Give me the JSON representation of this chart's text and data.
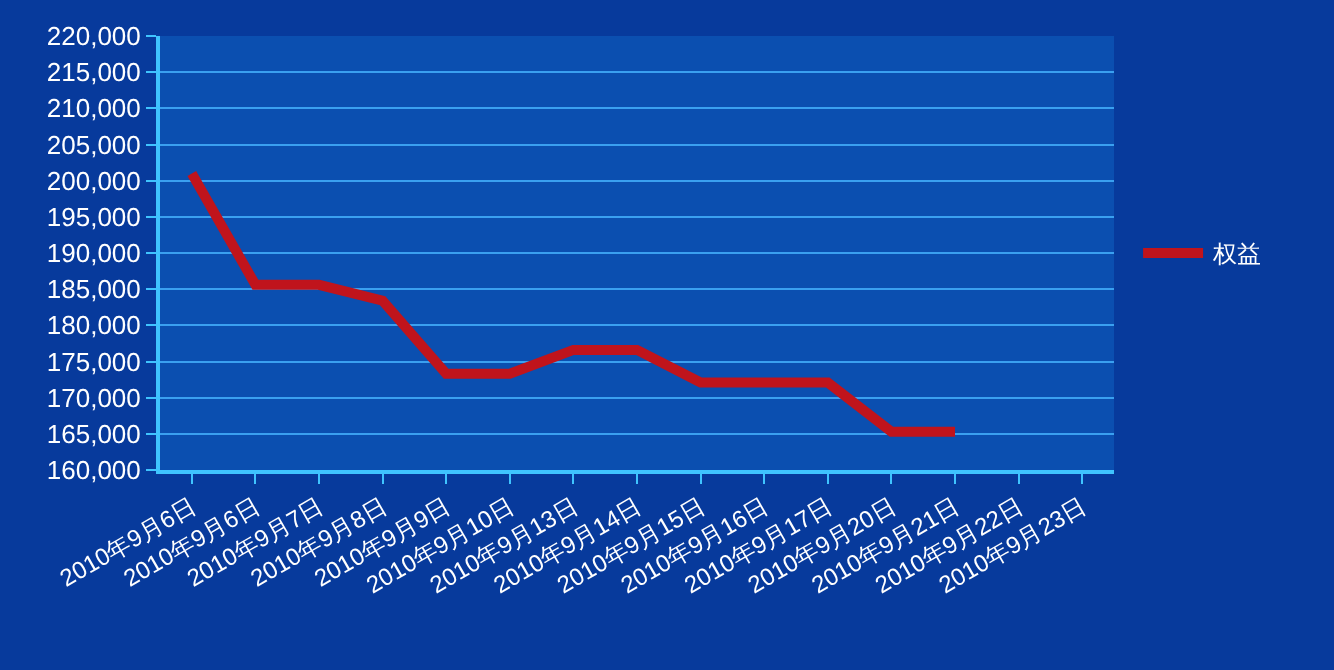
{
  "chart_data": {
    "type": "line",
    "categories": [
      "2010年9月6日",
      "2010年9月6日",
      "2010年9月7日",
      "2010年9月8日",
      "2010年9月9日",
      "2010年9月10日",
      "2010年9月13日",
      "2010年9月14日",
      "2010年9月15日",
      "2010年9月16日",
      "2010年9月17日",
      "2010年9月20日",
      "2010年9月21日",
      "2010年9月22日",
      "2010年9月23日"
    ],
    "series": [
      {
        "name": "权益",
        "color": "#c0141c",
        "values": [
          201000,
          185600,
          185600,
          183400,
          173300,
          173300,
          176600,
          176600,
          172100,
          172100,
          172100,
          165300,
          165300,
          null,
          null
        ]
      }
    ],
    "ylim": [
      160000,
      220000
    ],
    "yticks": [
      {
        "value": 160000,
        "label": "160,000"
      },
      {
        "value": 165000,
        "label": "165,000"
      },
      {
        "value": 170000,
        "label": "170,000"
      },
      {
        "value": 175000,
        "label": "175,000"
      },
      {
        "value": 180000,
        "label": "180,000"
      },
      {
        "value": 185000,
        "label": "185,000"
      },
      {
        "value": 190000,
        "label": "190,000"
      },
      {
        "value": 195000,
        "label": "195,000"
      },
      {
        "value": 200000,
        "label": "200,000"
      },
      {
        "value": 205000,
        "label": "205,000"
      },
      {
        "value": 210000,
        "label": "210,000"
      },
      {
        "value": 215000,
        "label": "215,000"
      },
      {
        "value": 220000,
        "label": "220,000"
      }
    ],
    "grid": "y",
    "legend": "right",
    "marker": "none",
    "line_style": "solid"
  }
}
